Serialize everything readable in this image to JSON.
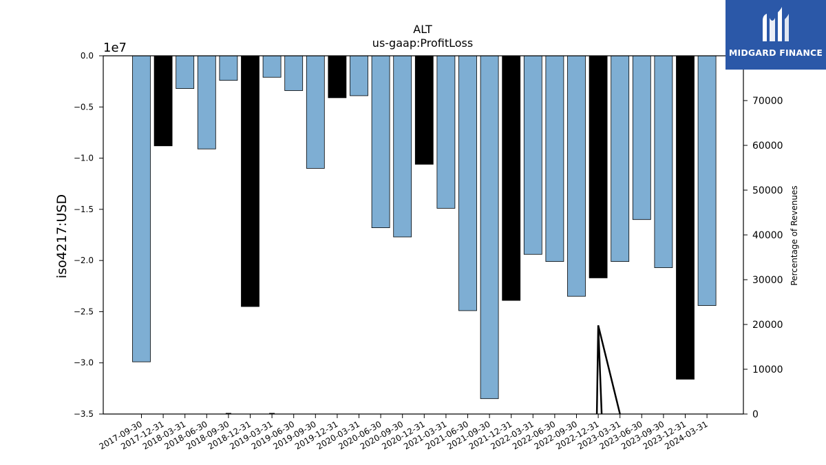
{
  "chart_data": {
    "type": "bar",
    "title": "ALT",
    "subtitle": "us-gaap:ProfitLoss",
    "ylabel": "iso4217:USD",
    "y_offset_label": "1e7",
    "y2label": "Percentage of Revenues",
    "ylim": [
      -3.5,
      0.0
    ],
    "y_scale_exponent": 7,
    "y_ticks": [
      "0.0",
      "−0.5",
      "−1.0",
      "−1.5",
      "−2.0",
      "−2.5",
      "−3.0",
      "−3.5"
    ],
    "y_tick_values": [
      0.0,
      -0.5,
      -1.0,
      -1.5,
      -2.0,
      -2.5,
      -3.0,
      -3.5
    ],
    "y2lim": [
      0,
      80000
    ],
    "y2_ticks": [
      "0",
      "10000",
      "20000",
      "30000",
      "40000",
      "50000",
      "60000",
      "70000"
    ],
    "y2_tick_values": [
      0,
      10000,
      20000,
      30000,
      40000,
      50000,
      60000,
      70000
    ],
    "categories": [
      "2017-09-30",
      "2017-12-31",
      "2018-03-31",
      "2018-06-30",
      "2018-09-30",
      "2018-12-31",
      "2019-03-31",
      "2019-06-30",
      "2019-09-30",
      "2019-12-31",
      "2020-03-31",
      "2020-06-30",
      "2020-09-30",
      "2020-12-31",
      "2021-03-31",
      "2021-06-30",
      "2021-09-30",
      "2021-12-31",
      "2022-03-31",
      "2022-06-30",
      "2022-09-30",
      "2022-12-31",
      "2023-03-31",
      "2023-06-30",
      "2023-09-30",
      "2023-12-31",
      "2024-03-31"
    ],
    "values": [
      -2.99,
      -0.88,
      -0.32,
      -0.91,
      -0.24,
      -2.45,
      -0.21,
      -0.34,
      -1.1,
      -0.41,
      -0.39,
      -1.68,
      -1.77,
      -1.06,
      -1.49,
      -2.49,
      -3.35,
      -2.39,
      -1.94,
      -2.01,
      -2.35,
      -2.17,
      -2.01,
      -1.6,
      -2.07,
      -3.16,
      -2.44
    ],
    "bar_colors": [
      "#7eaed3",
      "#000000",
      "#7eaed3",
      "#7eaed3",
      "#7eaed3",
      "#000000",
      "#7eaed3",
      "#7eaed3",
      "#7eaed3",
      "#000000",
      "#7eaed3",
      "#7eaed3",
      "#7eaed3",
      "#000000",
      "#7eaed3",
      "#7eaed3",
      "#7eaed3",
      "#000000",
      "#7eaed3",
      "#7eaed3",
      "#7eaed3",
      "#000000",
      "#7eaed3",
      "#7eaed3",
      "#7eaed3",
      "#000000",
      "#7eaed3"
    ],
    "line_series": {
      "axis": "y2",
      "color": "#000000",
      "values": [
        null,
        null,
        null,
        null,
        0,
        null,
        0,
        null,
        null,
        null,
        null,
        null,
        null,
        null,
        null,
        null,
        null,
        null,
        null,
        null,
        null,
        19800,
        0,
        null,
        null,
        null,
        null
      ]
    },
    "grid": false
  },
  "logo": {
    "brand": "MIDGARD FINANCE",
    "background": "#2b58a8"
  }
}
